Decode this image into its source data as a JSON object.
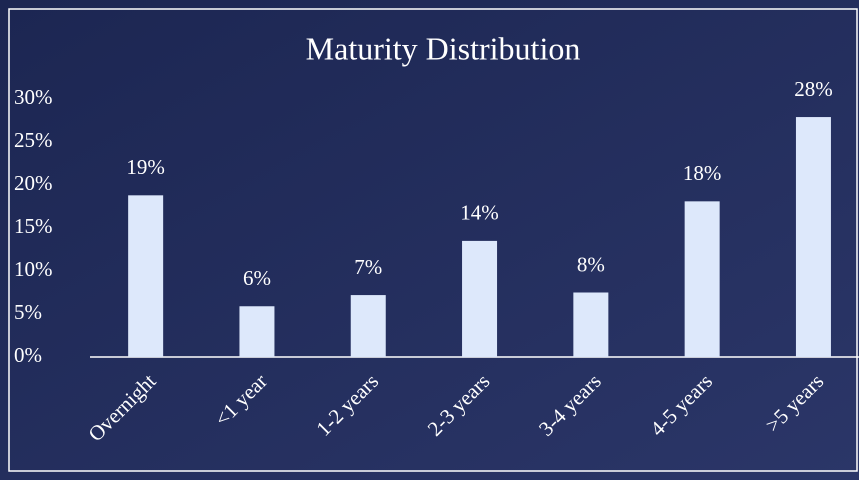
{
  "chart_data": {
    "type": "bar",
    "title": "Maturity Distribution",
    "categories": [
      "Overnight",
      "<1 year",
      "1-2 years",
      "2-3 years",
      "3-4 years",
      "4-5 years",
      ">5 years"
    ],
    "values": [
      18.8,
      5.9,
      7.2,
      13.5,
      7.5,
      18.1,
      27.9
    ],
    "value_labels": [
      "19%",
      "6%",
      "7%",
      "14%",
      "8%",
      "18%",
      "28%"
    ],
    "color": "#dde8fb",
    "ylim": [
      0,
      30
    ],
    "yticks": [
      {
        "value": 0,
        "label": "0%"
      },
      {
        "value": 5,
        "label": "5%"
      },
      {
        "value": 10,
        "label": "10%"
      },
      {
        "value": 15,
        "label": "15%"
      },
      {
        "value": 20,
        "label": "20%"
      },
      {
        "value": 25,
        "label": "25%"
      },
      {
        "value": 30,
        "label": "30%"
      }
    ],
    "grid": false
  }
}
